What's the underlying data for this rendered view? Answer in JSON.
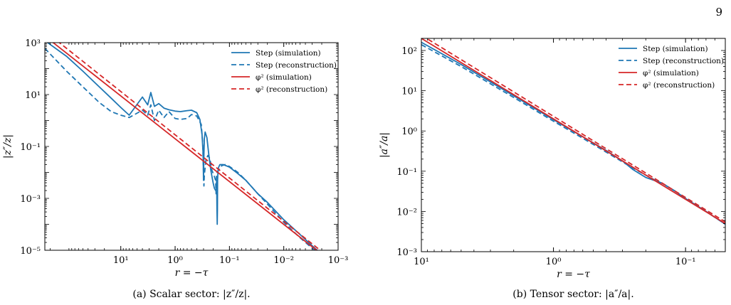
{
  "page_number": "9",
  "chart_data": [
    {
      "type": "line",
      "caption": "(a) Scalar sector: |z″/z|.",
      "xlabel": "r = −τ",
      "ylabel": "|z″/z|",
      "x_scale": "log",
      "y_scale": "log",
      "x_reversed": true,
      "xlim": [
        250,
        0.001
      ],
      "ylim": [
        1e-05,
        1000
      ],
      "x_ticks": [
        {
          "value": 10,
          "label": "10¹"
        },
        {
          "value": 1,
          "label": "10⁰"
        },
        {
          "value": 0.1,
          "label": "10⁻¹"
        },
        {
          "value": 0.01,
          "label": "10⁻²"
        },
        {
          "value": 0.001,
          "label": "10⁻³"
        }
      ],
      "y_ticks": [
        {
          "value": 1000,
          "label": "10³"
        },
        {
          "value": 10,
          "label": "10¹"
        },
        {
          "value": 0.1,
          "label": "10⁻¹"
        },
        {
          "value": 0.001,
          "label": "10⁻³"
        },
        {
          "value": 1e-05,
          "label": "10⁻⁵"
        }
      ],
      "grid": false,
      "legend_position": "top-right",
      "series": [
        {
          "name": "Step (simulation)",
          "color": "#1f77b4",
          "dash": "solid",
          "x": [
            250,
            100,
            50,
            25,
            15,
            10,
            7,
            4,
            3.2,
            2.8,
            2.4,
            2,
            1.6,
            1.3,
            1,
            0.8,
            0.6,
            0.5,
            0.4,
            0.35,
            0.32,
            0.305,
            0.3,
            0.295,
            0.29,
            0.28,
            0.26,
            0.24,
            0.22,
            0.2,
            0.19,
            0.18,
            0.17,
            0.175,
            0.172,
            0.17,
            0.168,
            0.166,
            0.165,
            0.163,
            0.16,
            0.15,
            0.13,
            0.1,
            0.07,
            0.05,
            0.03,
            0.02,
            0.01,
            0.005,
            0.003,
            0.002
          ],
          "y": [
            1200,
            300,
            80,
            20,
            7.2,
            3.2,
            1.6,
            8,
            4,
            12,
            3.5,
            4.5,
            3,
            2.6,
            2.3,
            2.2,
            2.4,
            2.5,
            2,
            1.1,
            0.3,
            0.05,
            0.005,
            0.05,
            0.2,
            0.36,
            0.22,
            0.05,
            0.012,
            0.004,
            0.0025,
            0.002,
            0.0025,
            0.003,
            0.005,
            0.0004,
            0.0001,
            0.0004,
            0.005,
            0.01,
            0.015,
            0.02,
            0.02,
            0.016,
            0.009,
            0.005,
            0.0015,
            0.0007,
            0.00015,
            4e-05,
            1.5e-05,
            7e-06
          ]
        },
        {
          "name": "Step (reconstruction)",
          "color": "#1f77b4",
          "dash": "dashed",
          "x": [
            250,
            100,
            50,
            25,
            15,
            10,
            7,
            4,
            3.2,
            2.8,
            2.4,
            2,
            1.6,
            1.3,
            1,
            0.8,
            0.6,
            0.5,
            0.4,
            0.33,
            0.31,
            0.3,
            0.295,
            0.29,
            0.27,
            0.25,
            0.23,
            0.21,
            0.19,
            0.18,
            0.178,
            0.176,
            0.175,
            0.173,
            0.17,
            0.16,
            0.14,
            0.12,
            0.1,
            0.07,
            0.05,
            0.03,
            0.02,
            0.01,
            0.005,
            0.003,
            0.002
          ],
          "y": [
            600,
            80,
            20,
            5,
            2.2,
            1.6,
            1.3,
            2.5,
            1.6,
            4,
            1,
            2.5,
            1.3,
            2.2,
            1.2,
            1.1,
            1.2,
            1.7,
            1.5,
            0.7,
            0.13,
            0.01,
            0.003,
            0.008,
            0.03,
            0.045,
            0.035,
            0.012,
            0.007,
            0.005,
            0.003,
            0.0015,
            0.004,
            0.008,
            0.01,
            0.012,
            0.018,
            0.02,
            0.017,
            0.01,
            0.005,
            0.0015,
            0.0006,
            0.00012,
            3e-05,
            1.2e-05,
            6e-06
          ]
        },
        {
          "name": "φ² (simulation)",
          "color": "#d62728",
          "dash": "solid",
          "x": [
            250,
            0.002
          ],
          "y": [
            1800,
            7e-06
          ]
        },
        {
          "name": "φ² (reconstruction)",
          "color": "#d62728",
          "dash": "dashed",
          "x": [
            250,
            0.002
          ],
          "y": [
            2800,
            9e-06
          ]
        }
      ]
    },
    {
      "type": "line",
      "caption": "(b) Tensor sector: |a″/a|.",
      "xlabel": "r = −τ",
      "ylabel": "|a″/a|",
      "x_scale": "log",
      "y_scale": "log",
      "x_reversed": true,
      "xlim": [
        10,
        0.05
      ],
      "ylim": [
        0.001,
        200
      ],
      "x_ticks": [
        {
          "value": 10,
          "label": "10¹"
        },
        {
          "value": 1,
          "label": "10⁰"
        },
        {
          "value": 0.1,
          "label": "10⁻¹"
        }
      ],
      "y_ticks": [
        {
          "value": 100,
          "label": "10²"
        },
        {
          "value": 10,
          "label": "10¹"
        },
        {
          "value": 1,
          "label": "10⁰"
        },
        {
          "value": 0.1,
          "label": "10⁻¹"
        },
        {
          "value": 0.01,
          "label": "10⁻²"
        },
        {
          "value": 0.001,
          "label": "10⁻³"
        }
      ],
      "grid": false,
      "legend_position": "top-right",
      "series": [
        {
          "name": "Step (simulation)",
          "color": "#1f77b4",
          "dash": "solid",
          "x": [
            10,
            5,
            2,
            1,
            0.6,
            0.4,
            0.3,
            0.25,
            0.2,
            0.17,
            0.15,
            0.12,
            0.1,
            0.07,
            0.05
          ],
          "y": [
            160,
            45,
            7.5,
            1.9,
            0.72,
            0.33,
            0.18,
            0.11,
            0.07,
            0.058,
            0.05,
            0.032,
            0.021,
            0.01,
            0.0048
          ]
        },
        {
          "name": "Step (reconstruction)",
          "color": "#1f77b4",
          "dash": "dashed",
          "x": [
            10,
            5,
            2,
            1,
            0.6,
            0.4,
            0.3,
            0.25,
            0.2,
            0.17,
            0.15,
            0.12,
            0.1,
            0.07,
            0.05
          ],
          "y": [
            140,
            40,
            6.8,
            1.75,
            0.66,
            0.3,
            0.17,
            0.12,
            0.08,
            0.06,
            0.05,
            0.032,
            0.021,
            0.01,
            0.0048
          ]
        },
        {
          "name": "φ² (simulation)",
          "color": "#d62728",
          "dash": "solid",
          "x": [
            10,
            0.05
          ],
          "y": [
            200,
            0.005
          ]
        },
        {
          "name": "φ² (reconstruction)",
          "color": "#d62728",
          "dash": "dashed",
          "x": [
            10,
            0.05
          ],
          "y": [
            240,
            0.0055
          ]
        }
      ]
    }
  ]
}
